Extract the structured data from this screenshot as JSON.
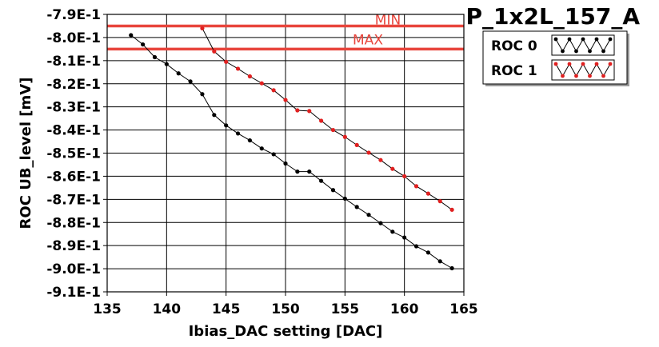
{
  "chart_data": {
    "type": "line",
    "title": "P_1x2L_157_A",
    "xlabel": "Ibias_DAC setting [DAC]",
    "ylabel": "ROC UB_level [mV]",
    "xlim": [
      135,
      165
    ],
    "ylim": [
      -0.91,
      -0.79
    ],
    "x_ticks": [
      "135",
      "140",
      "145",
      "150",
      "155",
      "160",
      "165"
    ],
    "y_ticks": [
      "-7.9E-1",
      "-8.0E-1",
      "-8.1E-1",
      "-8.2E-1",
      "-8.3E-1",
      "-8.4E-1",
      "-8.5E-1",
      "-8.6E-1",
      "-8.7E-1",
      "-8.8E-1",
      "-8.9E-1",
      "-9.0E-1",
      "-9.1E-1"
    ],
    "grid": true,
    "legend_placement": "top-right outside",
    "reference_lines": [
      {
        "label": "MIN",
        "y": -0.795,
        "color": "#e8453c"
      },
      {
        "label": "MAX",
        "y": -0.805,
        "color": "#e8453c"
      }
    ],
    "series": [
      {
        "name": "ROC 0",
        "color": "#000000",
        "x": [
          137,
          138,
          139,
          140,
          141,
          142,
          143,
          144,
          145,
          146,
          147,
          148,
          149,
          150,
          151,
          152,
          153,
          154,
          155,
          156,
          157,
          158,
          159,
          160,
          161,
          162,
          163,
          164
        ],
        "y": [
          -0.799,
          -0.803,
          -0.8085,
          -0.8115,
          -0.8155,
          -0.819,
          -0.8245,
          -0.8335,
          -0.838,
          -0.8415,
          -0.8445,
          -0.848,
          -0.8505,
          -0.8545,
          -0.858,
          -0.858,
          -0.862,
          -0.866,
          -0.8697,
          -0.8733,
          -0.8767,
          -0.8803,
          -0.884,
          -0.8865,
          -0.8903,
          -0.893,
          -0.8968,
          -0.8998
        ]
      },
      {
        "name": "ROC 1",
        "color": "#e02020",
        "x": [
          143,
          144,
          145,
          146,
          147,
          148,
          149,
          150,
          151,
          152,
          153,
          154,
          155,
          156,
          157,
          158,
          159,
          160,
          161,
          162,
          163,
          164
        ],
        "y": [
          -0.796,
          -0.806,
          -0.8105,
          -0.8135,
          -0.8168,
          -0.8198,
          -0.8228,
          -0.827,
          -0.8315,
          -0.8318,
          -0.836,
          -0.84,
          -0.843,
          -0.8465,
          -0.8498,
          -0.853,
          -0.8568,
          -0.86,
          -0.8643,
          -0.8675,
          -0.8708,
          -0.8745
        ]
      }
    ]
  }
}
